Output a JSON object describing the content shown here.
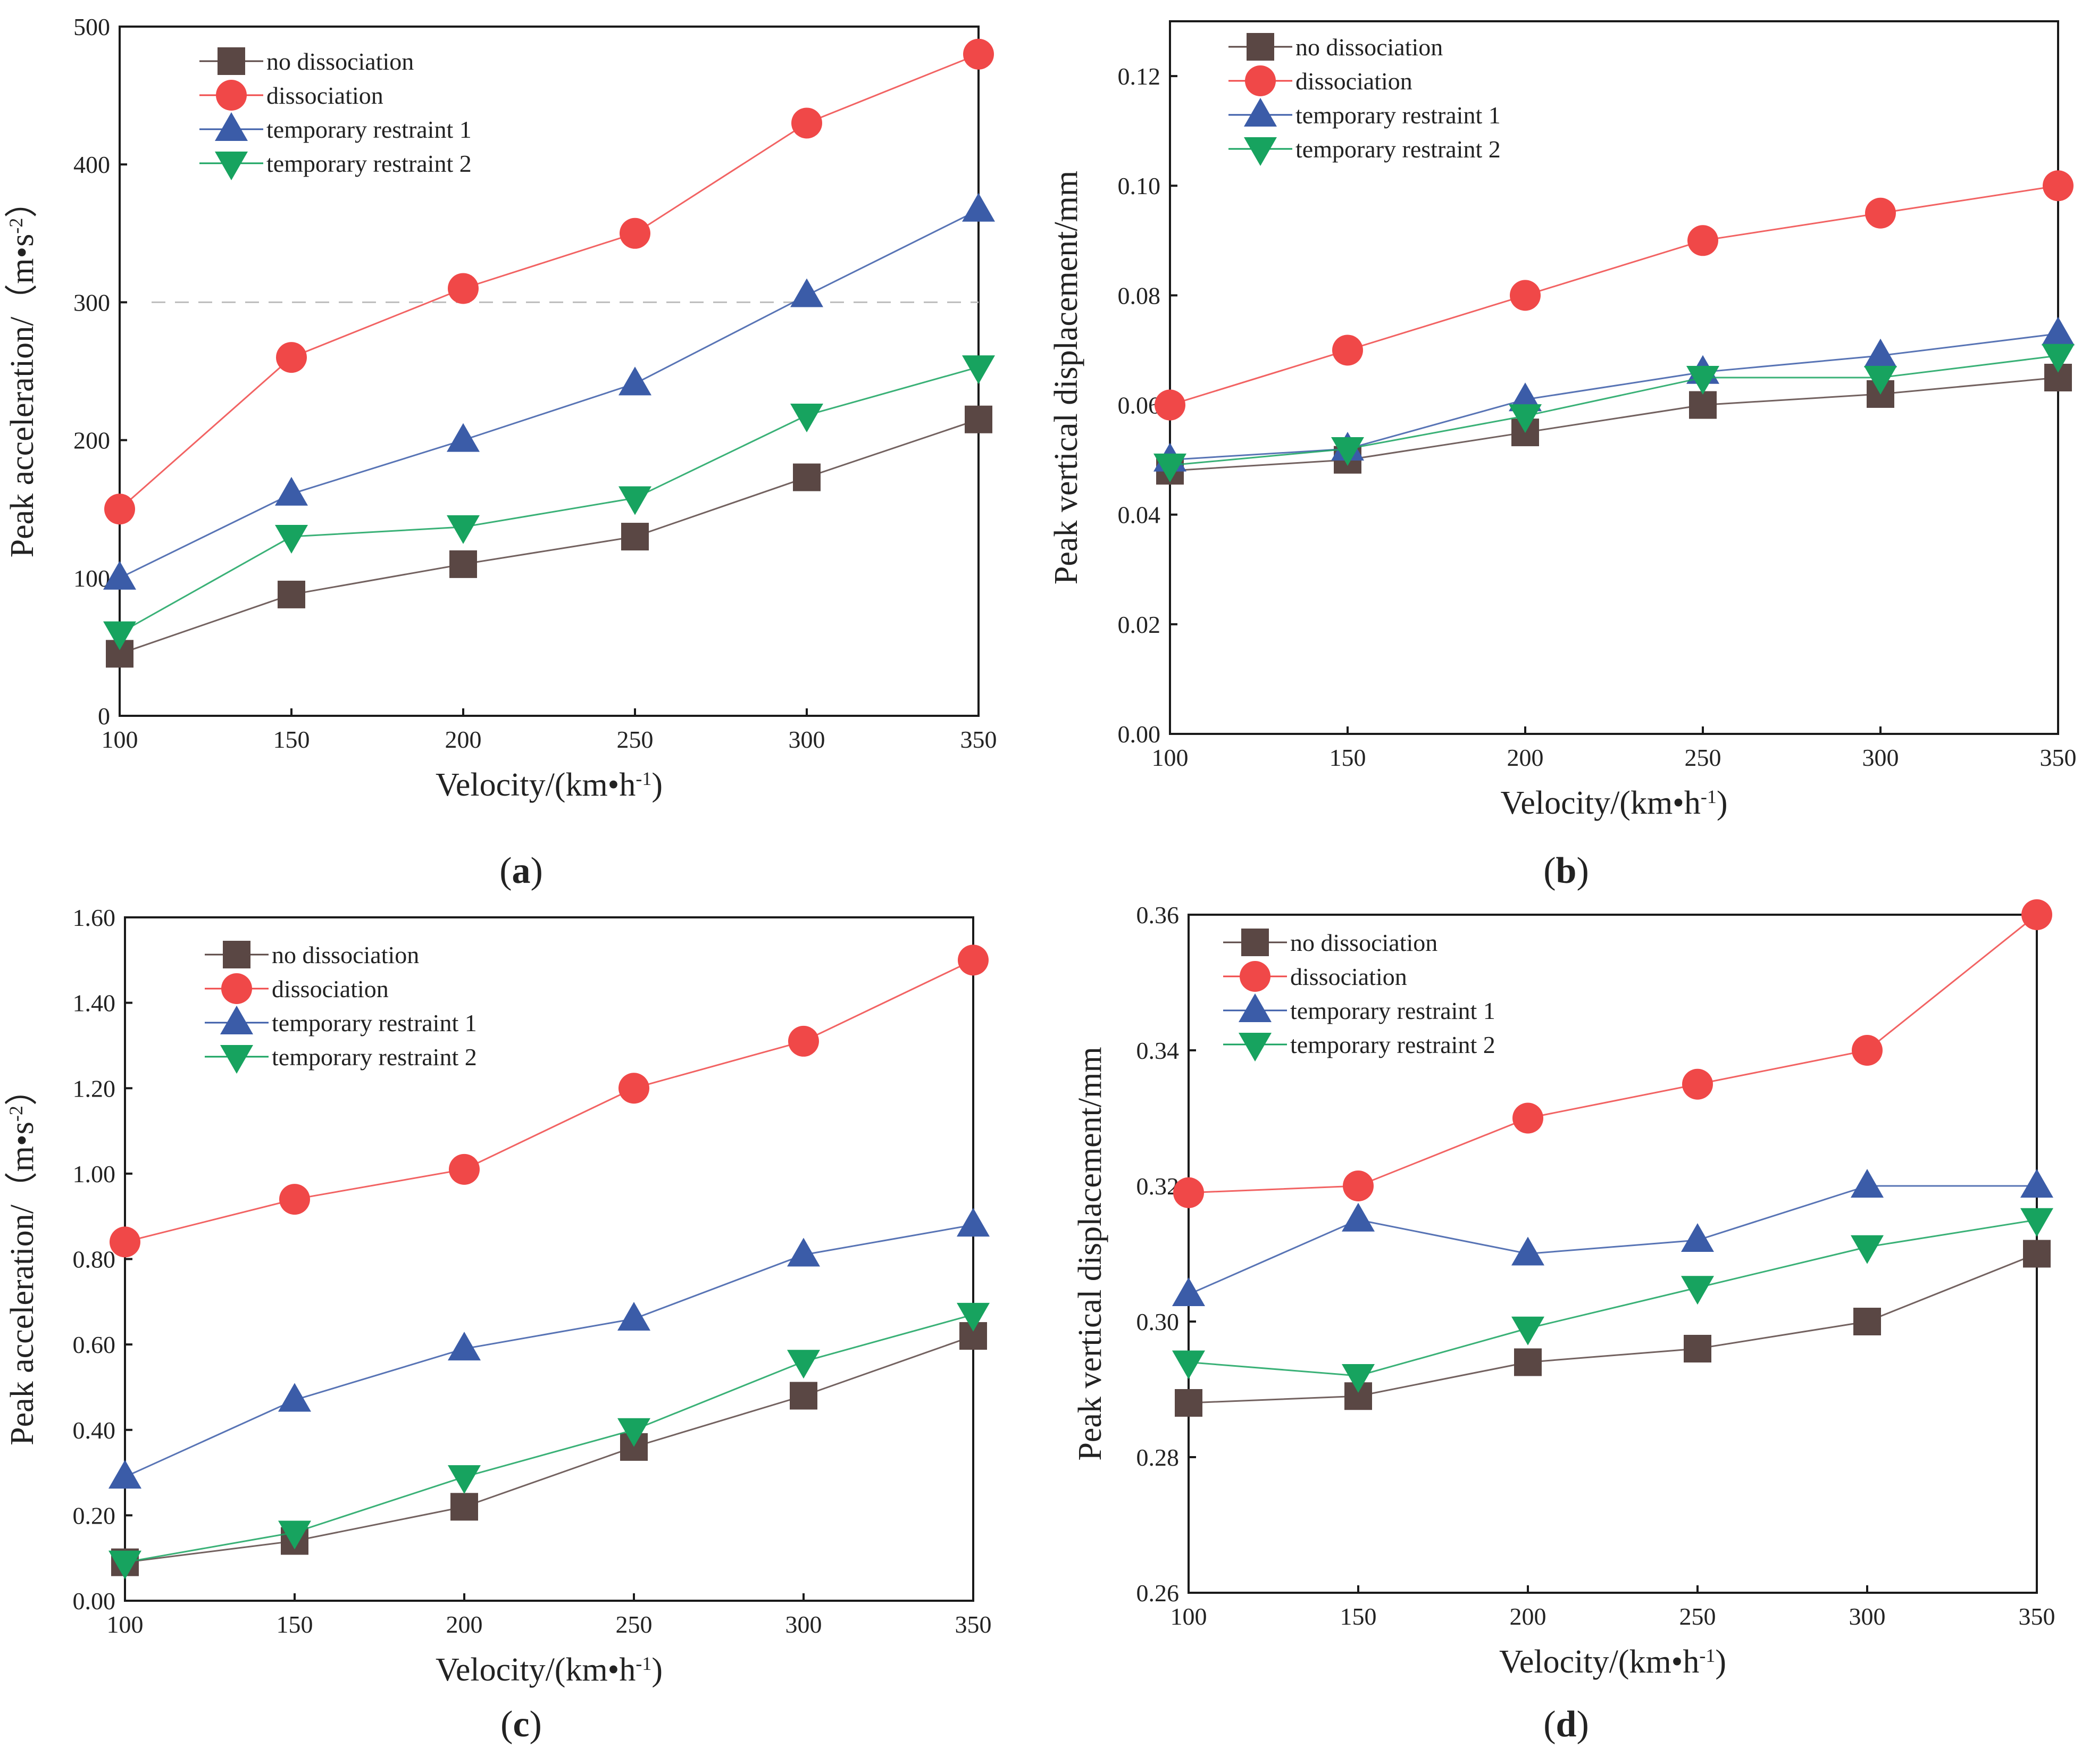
{
  "chart_data": [
    {
      "panel": "(a)",
      "type": "line",
      "xlabel": "Velocity/(km•h⁻¹)",
      "ylabel": "Peak acceleration/（m•s⁻²）",
      "x": [
        100,
        150,
        200,
        250,
        300,
        350
      ],
      "xticks": [
        "100",
        "150",
        "200",
        "250",
        "300",
        "350"
      ],
      "xlim": [
        100,
        350
      ],
      "yticks": [
        "0",
        "100",
        "200",
        "300",
        "400",
        "500"
      ],
      "ylim": [
        0,
        500
      ],
      "reference_line": 300,
      "legend_position": "top-left",
      "grid": false,
      "series": [
        {
          "name": "no dissociation",
          "color": "#5a4744",
          "marker": "square",
          "values": [
            45,
            88,
            110,
            130,
            173,
            215
          ]
        },
        {
          "name": "dissociation",
          "color": "#f04848",
          "marker": "circle",
          "values": [
            150,
            260,
            310,
            350,
            430,
            480
          ]
        },
        {
          "name": "temporary restraint 1",
          "color": "#3b5ca8",
          "marker": "triangle-up",
          "values": [
            100,
            161,
            200,
            241,
            305,
            367
          ]
        },
        {
          "name": "temporary restraint 2",
          "color": "#17a35f",
          "marker": "triangle-down",
          "values": [
            60,
            130,
            137,
            158,
            218,
            253
          ]
        }
      ]
    },
    {
      "panel": "(b)",
      "type": "line",
      "xlabel": "Velocity/(km•h⁻¹)",
      "ylabel": "Peak vertical displacement/mm",
      "x": [
        100,
        150,
        200,
        250,
        300,
        350
      ],
      "xticks": [
        "100",
        "150",
        "200",
        "250",
        "300",
        "350"
      ],
      "xlim": [
        100,
        350
      ],
      "yticks": [
        "0.00",
        "0.02",
        "0.04",
        "0.06",
        "0.08",
        "0.10",
        "0.12"
      ],
      "ylim": [
        0,
        0.13
      ],
      "legend_position": "top-left",
      "grid": false,
      "series": [
        {
          "name": "no dissociation",
          "color": "#5a4744",
          "marker": "square",
          "values": [
            0.048,
            0.05,
            0.055,
            0.06,
            0.062,
            0.065
          ]
        },
        {
          "name": "dissociation",
          "color": "#f04848",
          "marker": "circle",
          "values": [
            0.06,
            0.07,
            0.08,
            0.09,
            0.095,
            0.1
          ]
        },
        {
          "name": "temporary restraint 1",
          "color": "#3b5ca8",
          "marker": "triangle-up",
          "values": [
            0.05,
            0.052,
            0.061,
            0.066,
            0.069,
            0.073
          ]
        },
        {
          "name": "temporary restraint 2",
          "color": "#17a35f",
          "marker": "triangle-down",
          "values": [
            0.049,
            0.052,
            0.058,
            0.065,
            0.065,
            0.069
          ]
        }
      ]
    },
    {
      "panel": "(c)",
      "type": "line",
      "xlabel": "Velocity/(km•h⁻¹)",
      "ylabel": "Peak acceleration/（m•s⁻²）",
      "x": [
        100,
        150,
        200,
        250,
        300,
        350
      ],
      "xticks": [
        "100",
        "150",
        "200",
        "250",
        "300",
        "350"
      ],
      "xlim": [
        100,
        350
      ],
      "yticks": [
        "0.00",
        "0.20",
        "0.40",
        "0.60",
        "0.80",
        "1.00",
        "1.20",
        "1.40",
        "1.60"
      ],
      "ylim": [
        0,
        1.6
      ],
      "legend_position": "top-left",
      "grid": false,
      "series": [
        {
          "name": "no dissociation",
          "color": "#5a4744",
          "marker": "square",
          "values": [
            0.09,
            0.14,
            0.22,
            0.36,
            0.48,
            0.62
          ]
        },
        {
          "name": "dissociation",
          "color": "#f04848",
          "marker": "circle",
          "values": [
            0.84,
            0.94,
            1.01,
            1.2,
            1.31,
            1.5
          ]
        },
        {
          "name": "temporary restraint 1",
          "color": "#3b5ca8",
          "marker": "triangle-up",
          "values": [
            0.29,
            0.47,
            0.59,
            0.66,
            0.81,
            0.88
          ]
        },
        {
          "name": "temporary restraint 2",
          "color": "#17a35f",
          "marker": "triangle-down",
          "values": [
            0.09,
            0.16,
            0.29,
            0.4,
            0.56,
            0.67
          ]
        }
      ]
    },
    {
      "panel": "(d)",
      "type": "line",
      "xlabel": "Velocity/(km•h⁻¹)",
      "ylabel": "Peak vertical displacement/mm",
      "x": [
        100,
        150,
        200,
        250,
        300,
        350
      ],
      "xticks": [
        "100",
        "150",
        "200",
        "250",
        "300",
        "350"
      ],
      "xlim": [
        100,
        350
      ],
      "yticks": [
        "0.26",
        "0.28",
        "0.30",
        "0.32",
        "0.34",
        "0.36"
      ],
      "ylim": [
        0.26,
        0.36
      ],
      "legend_position": "top-left",
      "grid": false,
      "series": [
        {
          "name": "no dissociation",
          "color": "#5a4744",
          "marker": "square",
          "values": [
            0.288,
            0.289,
            0.294,
            0.296,
            0.3,
            0.31
          ]
        },
        {
          "name": "dissociation",
          "color": "#f04848",
          "marker": "circle",
          "values": [
            0.319,
            0.32,
            0.33,
            0.335,
            0.34,
            0.36
          ]
        },
        {
          "name": "temporary restraint 1",
          "color": "#3b5ca8",
          "marker": "triangle-up",
          "values": [
            0.304,
            0.315,
            0.31,
            0.312,
            0.32,
            0.32
          ]
        },
        {
          "name": "temporary restraint 2",
          "color": "#17a35f",
          "marker": "triangle-down",
          "values": [
            0.294,
            0.292,
            0.299,
            0.305,
            0.311,
            0.315
          ]
        }
      ]
    }
  ]
}
